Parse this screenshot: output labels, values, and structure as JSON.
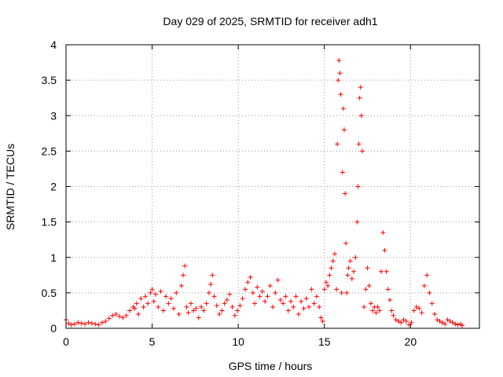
{
  "chart_data": {
    "type": "scatter",
    "title": "Day 029 of 2025, SRMTID for receiver adh1",
    "xlabel": "GPS time / hours",
    "ylabel": "SRMTID / TECUs",
    "xlim": [
      0,
      24
    ],
    "ylim": [
      0,
      4
    ],
    "xticks": [
      0,
      5,
      10,
      15,
      20
    ],
    "yticks": [
      0,
      0.5,
      1,
      1.5,
      2,
      2.5,
      3,
      3.5,
      4
    ],
    "xtick_labels": [
      "0",
      "5",
      "10",
      "15",
      "20"
    ],
    "ytick_labels": [
      "0",
      "0.5",
      "1",
      "1.5",
      "2",
      "2.5",
      "3",
      "3.5",
      "4"
    ],
    "grid": true,
    "marker": "+",
    "series": [
      {
        "name": "SRMTID",
        "color": "#ff0000",
        "x": [
          0.0,
          0.15,
          0.3,
          0.5,
          0.7,
          0.9,
          1.1,
          1.3,
          1.5,
          1.7,
          1.9,
          2.1,
          2.3,
          2.5,
          2.7,
          2.9,
          3.1,
          3.3,
          3.5,
          3.7,
          3.9,
          4.0,
          4.1,
          4.2,
          4.35,
          4.5,
          4.6,
          4.75,
          4.9,
          5.0,
          5.1,
          5.2,
          5.35,
          5.5,
          5.65,
          5.8,
          5.95,
          6.1,
          6.25,
          6.4,
          6.55,
          6.7,
          6.8,
          6.9,
          7.0,
          7.1,
          7.25,
          7.4,
          7.55,
          7.7,
          7.85,
          8.0,
          8.15,
          8.3,
          8.4,
          8.5,
          8.6,
          8.75,
          8.9,
          9.05,
          9.2,
          9.35,
          9.5,
          9.65,
          9.8,
          9.95,
          10.1,
          10.25,
          10.4,
          10.55,
          10.7,
          10.85,
          10.95,
          11.1,
          11.25,
          11.4,
          11.55,
          11.7,
          11.85,
          12.0,
          12.15,
          12.3,
          12.45,
          12.6,
          12.75,
          12.9,
          13.05,
          13.2,
          13.35,
          13.5,
          13.65,
          13.8,
          13.95,
          14.1,
          14.25,
          14.4,
          14.55,
          14.7,
          14.8,
          14.9,
          15.0,
          15.1,
          15.2,
          15.3,
          15.4,
          15.5,
          15.6,
          15.7,
          15.75,
          15.8,
          15.85,
          15.9,
          15.95,
          16.0,
          16.05,
          16.1,
          16.15,
          16.2,
          16.25,
          16.3,
          16.35,
          16.4,
          16.5,
          16.6,
          16.7,
          16.8,
          16.9,
          16.95,
          17.0,
          17.05,
          17.1,
          17.15,
          17.2,
          17.3,
          17.4,
          17.5,
          17.6,
          17.7,
          17.8,
          17.9,
          18.0,
          18.1,
          18.2,
          18.3,
          18.4,
          18.5,
          18.6,
          18.7,
          18.8,
          18.9,
          19.0,
          19.15,
          19.3,
          19.45,
          19.6,
          19.75,
          19.9,
          20.05,
          20.2,
          20.35,
          20.5,
          20.65,
          20.8,
          20.95,
          21.1,
          21.25,
          21.4,
          21.55,
          21.7,
          21.85,
          22.0,
          22.15,
          22.3,
          22.45,
          22.6,
          22.75,
          22.9,
          23.0
        ],
        "y": [
          0.12,
          0.07,
          0.05,
          0.06,
          0.08,
          0.07,
          0.06,
          0.08,
          0.07,
          0.06,
          0.05,
          0.08,
          0.1,
          0.14,
          0.18,
          0.2,
          0.17,
          0.15,
          0.18,
          0.25,
          0.3,
          0.28,
          0.35,
          0.2,
          0.42,
          0.3,
          0.45,
          0.35,
          0.5,
          0.55,
          0.38,
          0.48,
          0.3,
          0.52,
          0.25,
          0.45,
          0.35,
          0.42,
          0.28,
          0.5,
          0.2,
          0.6,
          0.75,
          0.88,
          0.3,
          0.22,
          0.35,
          0.25,
          0.28,
          0.15,
          0.3,
          0.25,
          0.35,
          0.5,
          0.62,
          0.75,
          0.45,
          0.32,
          0.2,
          0.25,
          0.35,
          0.4,
          0.48,
          0.3,
          0.18,
          0.25,
          0.32,
          0.42,
          0.55,
          0.65,
          0.72,
          0.5,
          0.35,
          0.58,
          0.45,
          0.52,
          0.38,
          0.45,
          0.6,
          0.3,
          0.5,
          0.68,
          0.4,
          0.35,
          0.45,
          0.25,
          0.38,
          0.3,
          0.45,
          0.2,
          0.38,
          0.28,
          0.42,
          0.3,
          0.55,
          0.35,
          0.45,
          0.3,
          0.15,
          0.1,
          0.55,
          0.65,
          0.6,
          0.75,
          0.85,
          0.95,
          1.05,
          0.55,
          2.6,
          3.5,
          3.78,
          3.6,
          3.3,
          0.5,
          2.2,
          3.1,
          2.8,
          1.9,
          1.2,
          0.5,
          0.75,
          0.85,
          0.95,
          0.7,
          0.8,
          1.0,
          1.5,
          2.0,
          2.6,
          3.25,
          3.4,
          3.0,
          2.5,
          0.3,
          0.55,
          0.85,
          0.6,
          0.35,
          0.25,
          0.3,
          0.22,
          0.3,
          0.25,
          0.8,
          1.35,
          1.1,
          0.8,
          0.55,
          0.4,
          0.25,
          0.18,
          0.12,
          0.1,
          0.08,
          0.12,
          0.1,
          0.05,
          0.08,
          0.25,
          0.3,
          0.28,
          0.22,
          0.6,
          0.75,
          0.5,
          0.35,
          0.2,
          0.12,
          0.1,
          0.08,
          0.06,
          0.12,
          0.1,
          0.08,
          0.06,
          0.05,
          0.06,
          0.04
        ]
      }
    ]
  }
}
